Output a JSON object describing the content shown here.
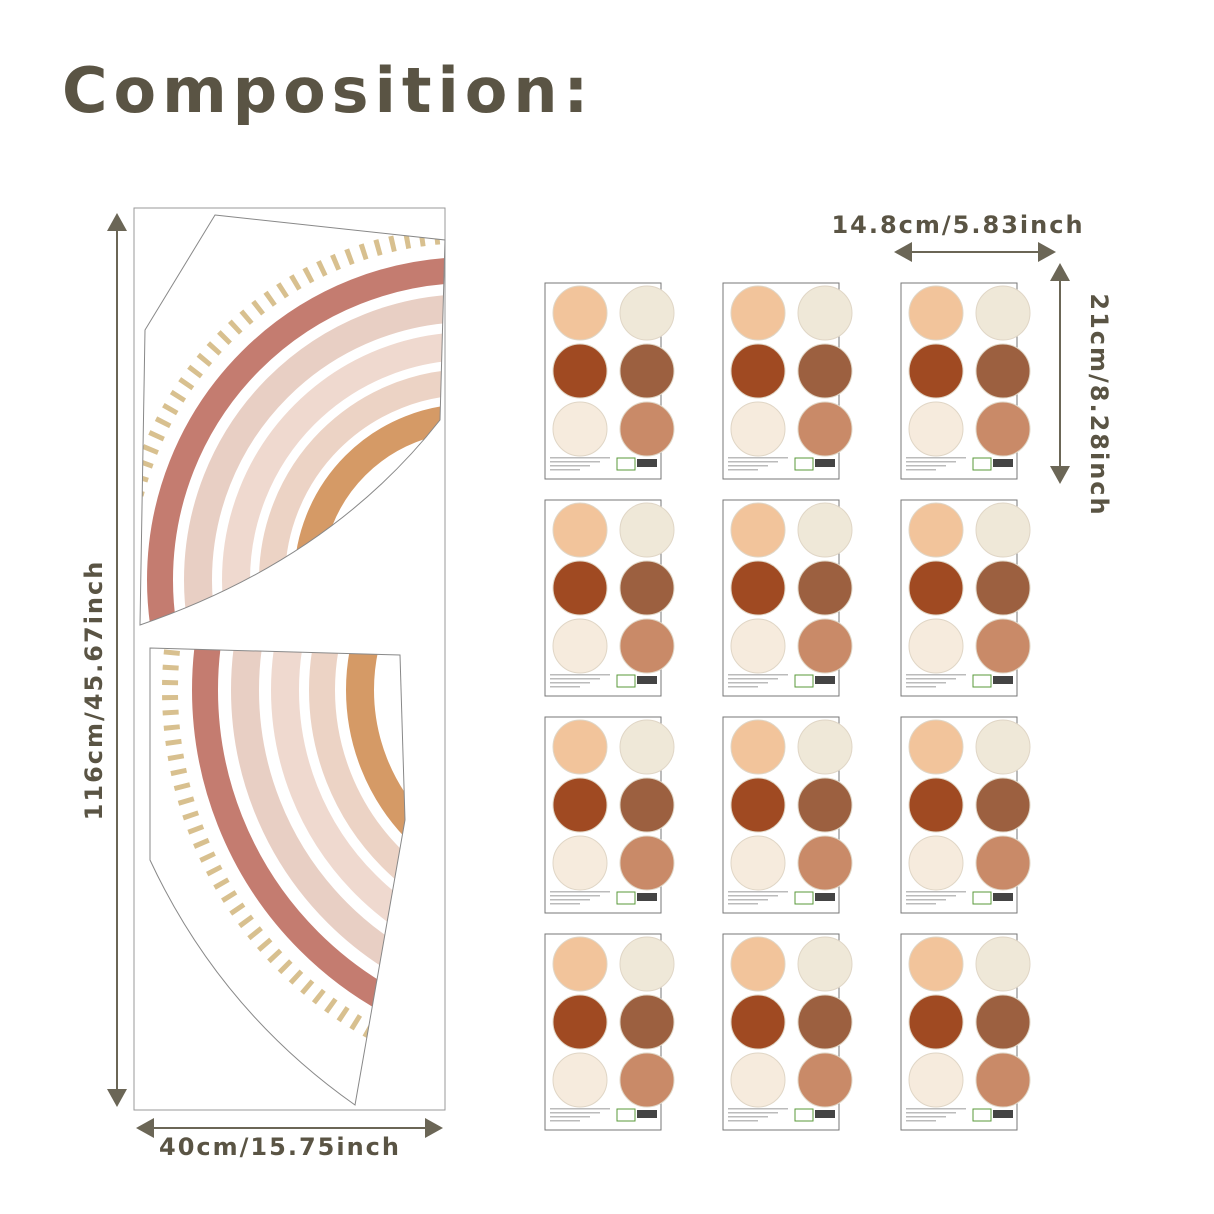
{
  "title": "Composition:",
  "panel": {
    "height_label": "116cm/45.67inch",
    "width_label": "40cm/15.75inch"
  },
  "sheet": {
    "width_label": "14.8cm/5.83inch",
    "height_label": "21cm/8.28inch"
  }
}
